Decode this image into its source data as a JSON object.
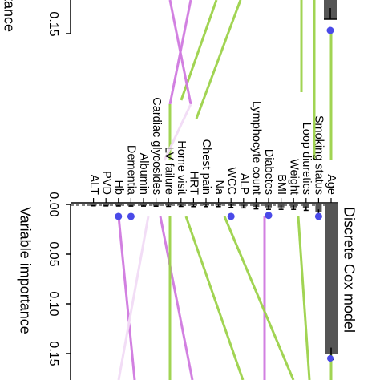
{
  "chart_data": [
    {
      "type": "bar",
      "orientation": "rotated-90",
      "title": "Discrete Cox model",
      "xlabel": "Variable importance",
      "xticks": [
        "0.00",
        "0.05",
        "0.10",
        "0.15"
      ],
      "xlim": [
        0,
        0.16
      ],
      "categories": [
        "Age",
        "Smoking status",
        "Loop diuretics",
        "Weight",
        "BMI",
        "Diabetes",
        "Lymphocyte count",
        "ALP",
        "WCC",
        "Na",
        "Chest pain",
        "HRT",
        "Home visit",
        "LV failure",
        "Cardiac glycosides",
        "Albumin",
        "Dementia",
        "Hb",
        "PVD",
        "ALT"
      ],
      "values": [
        0.15,
        0.008,
        0.004,
        0.003,
        0.003,
        0.003,
        0.0025,
        0.002,
        0.0015,
        0.001,
        0.001,
        0.0008,
        0.0007,
        0.0006,
        0.0005,
        0.0004,
        0.0004,
        0.0003,
        0.0002,
        0.0001
      ],
      "errors": [
        0.006,
        0.003,
        0.002,
        0.002,
        0.002,
        0.002,
        0.002,
        0.0015,
        0.0015,
        0.001,
        0.001,
        0.001,
        0.0008,
        0.0008,
        0.0006,
        0.0005,
        0.0005,
        0.0004,
        0.0003,
        0.0002
      ],
      "highlighted_points": [
        {
          "category": "Smoking status",
          "value": 0.004
        },
        {
          "category": "Diabetes",
          "value": 0.003
        },
        {
          "category": "WCC",
          "value": 0.004
        },
        {
          "category": "Dementia",
          "value": 0.004
        },
        {
          "category": "Hb",
          "value": 0.004
        }
      ]
    },
    {
      "type": "bar",
      "orientation": "rotated-90",
      "partial": true,
      "xlabel": "Variable importance",
      "xticks": [
        "0.15"
      ],
      "values": [
        0.15
      ]
    }
  ],
  "colors": {
    "bar": "#555555",
    "point": "#4a4ae8",
    "line_green": "#9dd24a",
    "line_magenta": "#d07ae0",
    "line_magenta_faint": "#f2dcf6"
  }
}
